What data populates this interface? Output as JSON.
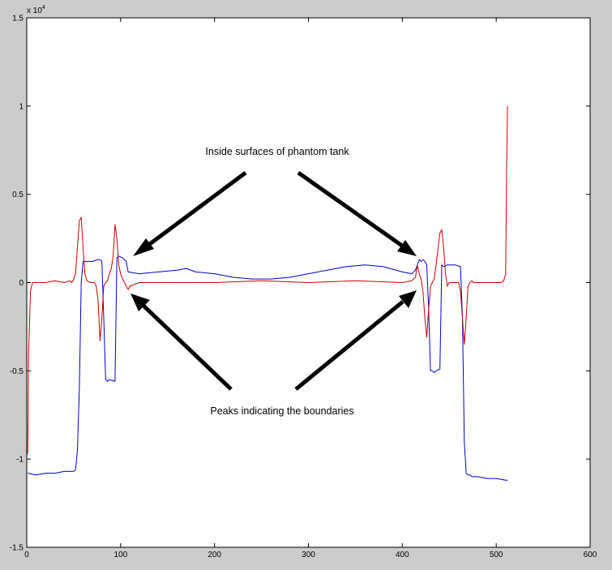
{
  "chart_data": {
    "type": "line",
    "title": "",
    "xlabel": "",
    "ylabel": "",
    "xlim": [
      0,
      600
    ],
    "ylim": [
      -1.5,
      1.5
    ],
    "y_exponent_label": "x 10",
    "y_exponent_power": "4",
    "x_ticks": [
      {
        "value": 0,
        "label": "0"
      },
      {
        "value": 100,
        "label": "100"
      },
      {
        "value": 200,
        "label": "200"
      },
      {
        "value": 300,
        "label": "300"
      },
      {
        "value": 400,
        "label": "400"
      },
      {
        "value": 500,
        "label": "500"
      },
      {
        "value": 600,
        "label": "600"
      }
    ],
    "y_ticks": [
      {
        "value": 1.5,
        "label": "1.5"
      },
      {
        "value": 1,
        "label": "1"
      },
      {
        "value": 0.5,
        "label": "0.5"
      },
      {
        "value": 0,
        "label": "0"
      },
      {
        "value": -0.5,
        "label": "-0.5"
      },
      {
        "value": -1,
        "label": "-1"
      },
      {
        "value": -1.5,
        "label": "-1.5"
      }
    ],
    "grid": false,
    "legend": "none",
    "series": [
      {
        "color": "#0000cc",
        "x": [
          1,
          10,
          20,
          30,
          40,
          50,
          52,
          54,
          56,
          58,
          60,
          70,
          76,
          78,
          80,
          82,
          84,
          86,
          88,
          94,
          96,
          98,
          102,
          106,
          108,
          120,
          140,
          160,
          170,
          180,
          200,
          220,
          240,
          260,
          280,
          300,
          320,
          340,
          360,
          380,
          400,
          410,
          414,
          416,
          418,
          420,
          422,
          424,
          426,
          428,
          430,
          432,
          434,
          436,
          440,
          442,
          444,
          448,
          456,
          462,
          464,
          466,
          468,
          470,
          472,
          474,
          476,
          480,
          490,
          500,
          510,
          512
        ],
        "y": [
          -1.08,
          -1.09,
          -1.08,
          -1.08,
          -1.07,
          -1.07,
          -1.06,
          -0.95,
          -0.6,
          0.0,
          0.12,
          0.12,
          0.13,
          0.13,
          0.12,
          -0.2,
          -0.55,
          -0.56,
          -0.55,
          -0.56,
          0.14,
          0.15,
          0.14,
          0.12,
          0.06,
          0.05,
          0.06,
          0.07,
          0.08,
          0.06,
          0.05,
          0.03,
          0.02,
          0.02,
          0.03,
          0.05,
          0.07,
          0.09,
          0.1,
          0.09,
          0.06,
          0.05,
          0.07,
          0.1,
          0.13,
          0.12,
          0.13,
          0.12,
          0.1,
          -0.15,
          -0.5,
          -0.5,
          -0.51,
          -0.5,
          -0.49,
          0.1,
          0.09,
          0.1,
          0.1,
          0.09,
          -0.2,
          -0.9,
          -1.08,
          -1.09,
          -1.09,
          -1.1,
          -1.1,
          -1.1,
          -1.11,
          -1.11,
          -1.12,
          -1.12
        ]
      },
      {
        "color": "#cc0000",
        "x": [
          1,
          2,
          4,
          6,
          10,
          20,
          30,
          40,
          46,
          48,
          50,
          52,
          54,
          56,
          58,
          60,
          62,
          64,
          68,
          72,
          74,
          76,
          78,
          80,
          82,
          84,
          86,
          88,
          90,
          92,
          94,
          96,
          98,
          100,
          102,
          106,
          108,
          110,
          120,
          150,
          200,
          250,
          300,
          350,
          400,
          410,
          414,
          416,
          418,
          420,
          422,
          424,
          426,
          428,
          430,
          432,
          434,
          436,
          440,
          442,
          444,
          446,
          448,
          450,
          452,
          456,
          460,
          462,
          464,
          466,
          468,
          470,
          472,
          474,
          476,
          478,
          480,
          500,
          505,
          508,
          510,
          511,
          512
        ],
        "y": [
          -0.97,
          -0.4,
          -0.05,
          0.0,
          0.0,
          0.0,
          0.01,
          0.0,
          0.01,
          0.0,
          0.02,
          0.05,
          0.2,
          0.35,
          0.37,
          0.2,
          0.05,
          0.01,
          0.0,
          0.0,
          -0.02,
          -0.1,
          -0.33,
          -0.2,
          -0.02,
          0.0,
          0.01,
          0.05,
          0.08,
          0.15,
          0.33,
          0.25,
          0.1,
          0.05,
          0.02,
          -0.02,
          -0.04,
          -0.02,
          0.0,
          0.0,
          0.0,
          0.01,
          0.0,
          0.01,
          0.0,
          0.01,
          0.03,
          0.1,
          0.05,
          0.02,
          -0.05,
          -0.2,
          -0.31,
          -0.15,
          -0.02,
          0.0,
          0.02,
          0.1,
          0.28,
          0.3,
          0.2,
          0.05,
          -0.02,
          0.0,
          0.0,
          0.0,
          0.0,
          -0.05,
          -0.2,
          -0.35,
          -0.2,
          -0.02,
          0.0,
          0.01,
          0.0,
          0.0,
          0.0,
          0.0,
          0.0,
          0.01,
          0.05,
          0.6,
          1.0
        ]
      }
    ],
    "annotations": [
      {
        "text": "Inside surfaces of phantom tank"
      },
      {
        "text": "Peaks indicating the boundaries"
      }
    ]
  }
}
